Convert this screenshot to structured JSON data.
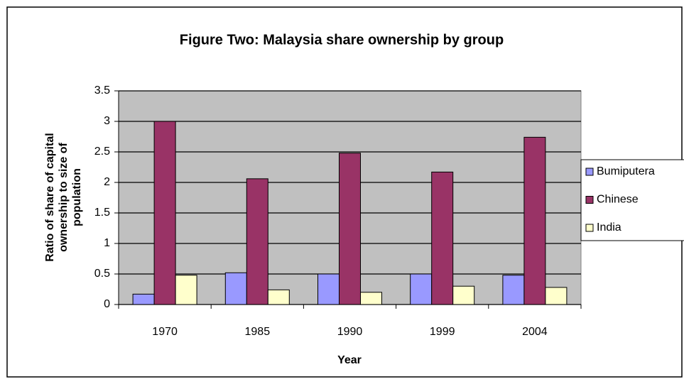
{
  "chart_data": {
    "type": "bar",
    "title": "Figure Two: Malaysia share ownership by group",
    "xlabel": "Year",
    "ylabel": "Ratio of share of capital ownership to size of population",
    "categories": [
      "1970",
      "1985",
      "1990",
      "1999",
      "2004"
    ],
    "series": [
      {
        "name": "Bumiputera",
        "color": "#9999ff",
        "values": [
          0.17,
          0.52,
          0.5,
          0.5,
          0.48
        ]
      },
      {
        "name": "Chinese",
        "color": "#993366",
        "values": [
          3.0,
          2.06,
          2.48,
          2.17,
          2.74
        ]
      },
      {
        "name": "India",
        "color": "#ffffcc",
        "values": [
          0.48,
          0.24,
          0.2,
          0.3,
          0.28
        ]
      }
    ],
    "ylim": [
      0,
      3.5
    ],
    "yticks": [
      0,
      0.5,
      1,
      1.5,
      2,
      2.5,
      3,
      3.5
    ],
    "grid": true,
    "legend": "right"
  }
}
